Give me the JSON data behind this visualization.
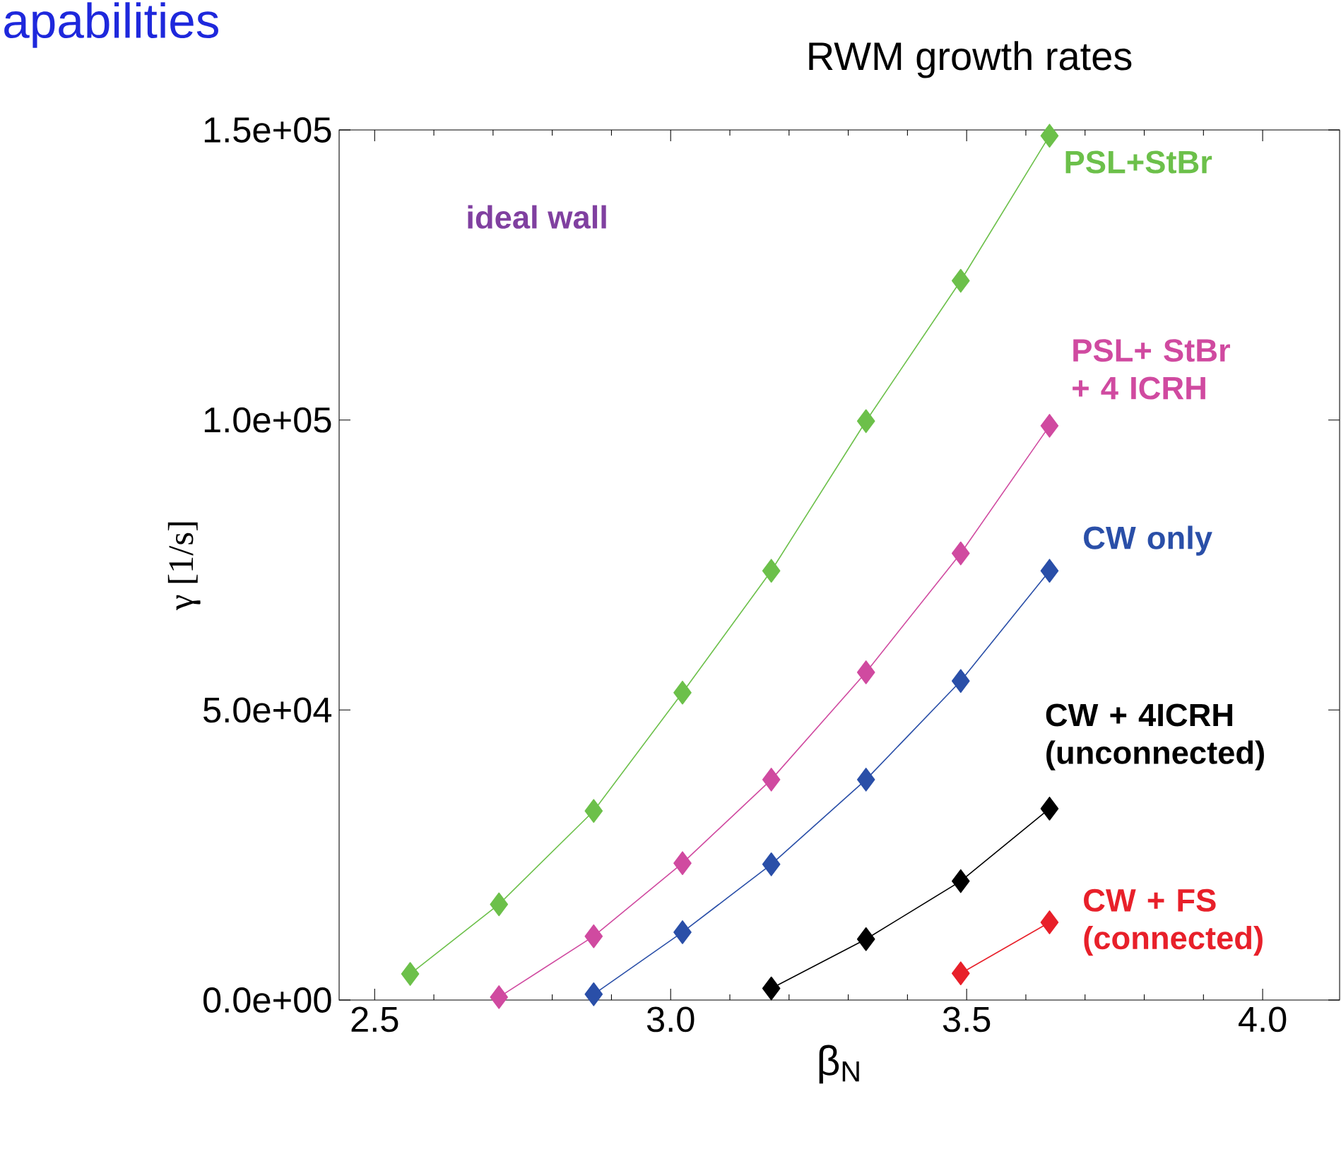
{
  "chart_data": {
    "type": "line",
    "title": "RWM growth rates",
    "xlabel": "β$_{N}$",
    "ylabel": "γ  [1/s]",
    "annotations": [
      "apabilities",
      "ideal wall"
    ],
    "xlim": [
      2.44,
      4.13
    ],
    "ylim": [
      0,
      150000
    ],
    "xticks": [
      {
        "value": 2.5,
        "label": "2.5"
      },
      {
        "value": 3,
        "label": "3.0"
      },
      {
        "value": 3.5,
        "label": "3.5"
      },
      {
        "value": 4,
        "label": "4.0"
      }
    ],
    "yticks": [
      {
        "value": 0,
        "label": "0.0e+00"
      },
      {
        "value": 50000,
        "label": "5.0e+04"
      },
      {
        "value": 100000,
        "label": "1.0e+05"
      },
      {
        "value": 150000,
        "label": "1.5e+05"
      }
    ],
    "marker": "diamond",
    "grid": false,
    "series": [
      {
        "name": "PSL+StBr",
        "color": "#6cc04a",
        "x": [
          2.56,
          2.71,
          2.87,
          3.02,
          3.17,
          3.33,
          3.49,
          3.64
        ],
        "values": [
          4500,
          16500,
          32600,
          53000,
          74000,
          99800,
          124000,
          149000
        ]
      },
      {
        "name": "PSL+ StBr + 4 ICRH",
        "color": "#d04aa0",
        "x": [
          2.71,
          2.87,
          3.02,
          3.17,
          3.33,
          3.49,
          3.64
        ],
        "values": [
          500,
          11000,
          23600,
          38000,
          56500,
          77000,
          99000
        ]
      },
      {
        "name": "CW only",
        "color": "#2a4fa8",
        "x": [
          2.87,
          3.02,
          3.17,
          3.33,
          3.49,
          3.64
        ],
        "values": [
          1000,
          11700,
          23400,
          38000,
          55000,
          74000
        ]
      },
      {
        "name": "CW + 4ICRH (unconnected)",
        "color": "#000000",
        "x": [
          3.17,
          3.33,
          3.49,
          3.64
        ],
        "values": [
          2000,
          10500,
          20500,
          33000
        ]
      },
      {
        "name": "CW + FS (connected)",
        "color": "#e8202a",
        "x": [
          3.49,
          3.64
        ],
        "values": [
          4600,
          13400
        ]
      }
    ]
  }
}
